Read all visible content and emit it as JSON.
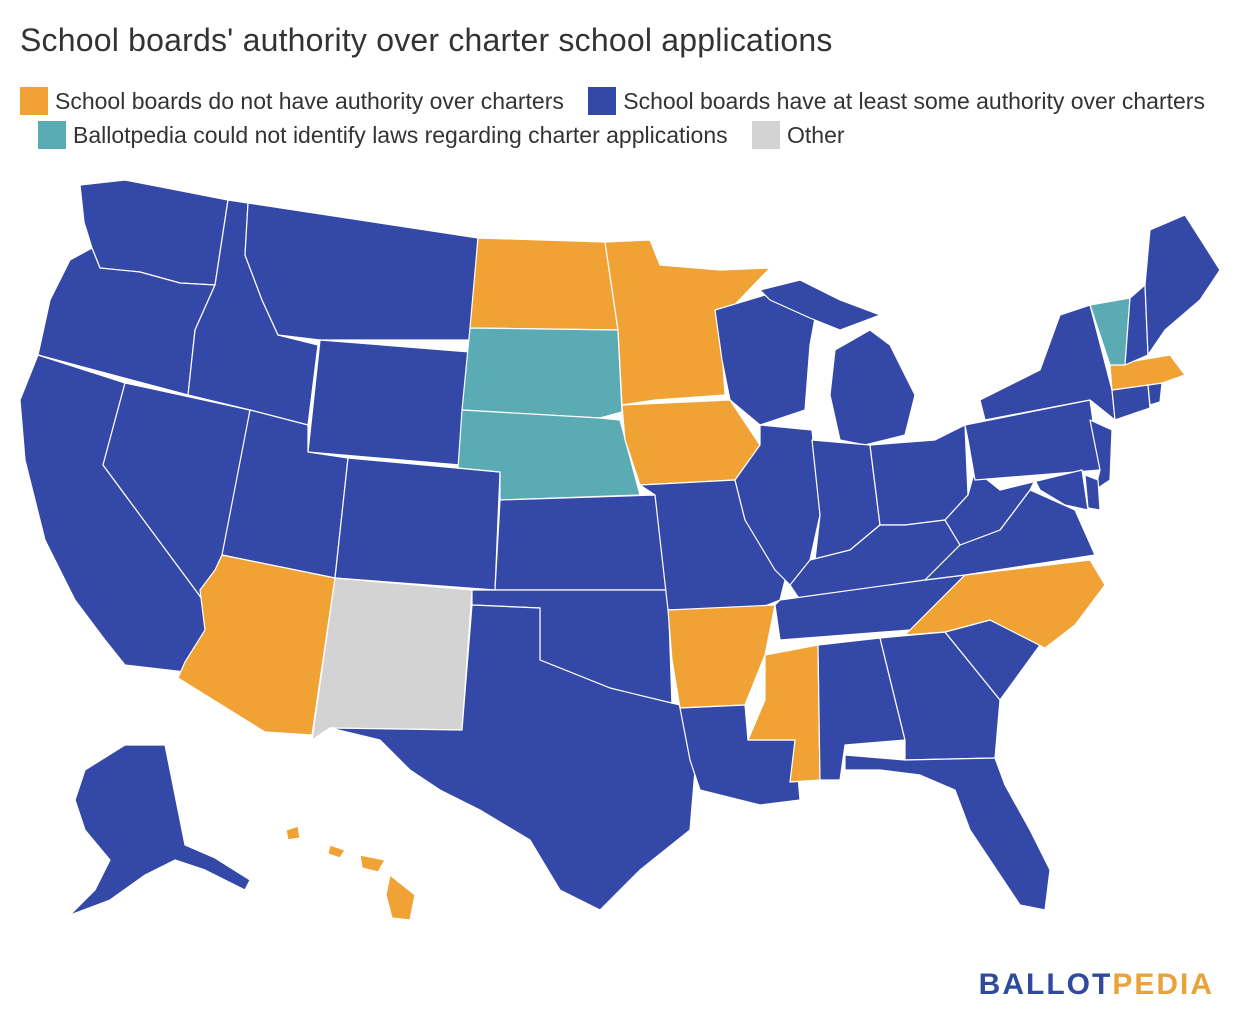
{
  "title": "School boards' authority over charter school applications",
  "legend": [
    {
      "key": "none",
      "label": "School boards do not have authority over charters",
      "color": "#f0a234"
    },
    {
      "key": "some",
      "label": "School boards have at least some authority over charters",
      "color": "#3448a8"
    },
    {
      "key": "unknown",
      "label": "Ballotpedia could not identify laws regarding charter applications",
      "color": "#5aabb4"
    },
    {
      "key": "other",
      "label": "Other",
      "color": "#d3d3d3"
    }
  ],
  "states": {
    "WA": "some",
    "OR": "some",
    "CA": "some",
    "NV": "some",
    "ID": "some",
    "MT": "some",
    "WY": "some",
    "UT": "some",
    "CO": "some",
    "AZ": "none",
    "NM": "other",
    "ND": "none",
    "SD": "unknown",
    "NE": "unknown",
    "KS": "some",
    "OK": "some",
    "TX": "some",
    "MN": "none",
    "IA": "none",
    "MO": "some",
    "AR": "none",
    "LA": "some",
    "WI": "some",
    "IL": "some",
    "MI": "some",
    "IN": "some",
    "OH": "some",
    "KY": "some",
    "TN": "some",
    "MS": "none",
    "AL": "some",
    "GA": "some",
    "FL": "some",
    "SC": "some",
    "NC": "none",
    "VA": "some",
    "WV": "some",
    "PA": "some",
    "NY": "some",
    "VT": "unknown",
    "NH": "some",
    "ME": "some",
    "MA": "none",
    "RI": "some",
    "CT": "some",
    "NJ": "some",
    "DE": "some",
    "MD": "some",
    "AK": "some",
    "HI": "none"
  },
  "logo": {
    "part1": "BALLOT",
    "part2": "PEDIA"
  }
}
